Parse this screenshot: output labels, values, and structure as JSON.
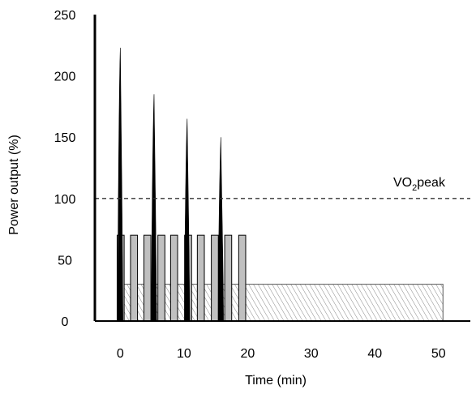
{
  "chart_data": {
    "type": "bar",
    "xlabel": "Time (min)",
    "ylabel": "Power output (%)",
    "xlim": [
      -4,
      55
    ],
    "ylim": [
      0,
      250
    ],
    "x_ticks": [
      0,
      10,
      20,
      30,
      40,
      50
    ],
    "y_ticks": [
      0,
      50,
      100,
      150,
      200,
      250
    ],
    "grid": false,
    "reference_line": {
      "value": 100,
      "label_main": "VO",
      "label_sub": "2",
      "label_tail": "peak",
      "style": "dashed"
    },
    "sprint_bars": {
      "value": 70,
      "color": "#c0c0c0",
      "intervals": [
        [
          -0.5,
          0.6
        ],
        [
          1.6,
          2.7
        ],
        [
          3.7,
          4.8
        ],
        [
          5.9,
          7.0
        ],
        [
          7.9,
          9.0
        ],
        [
          10.1,
          11.2
        ],
        [
          12.1,
          13.2
        ],
        [
          14.3,
          15.4
        ],
        [
          16.4,
          17.5
        ],
        [
          18.6,
          19.7
        ]
      ]
    },
    "background_block": {
      "start": 0.5,
      "end": 50.7,
      "value": 30,
      "pattern": "hatched"
    },
    "power_spikes": [
      {
        "time": 0,
        "peak": 223
      },
      {
        "time": 5.3,
        "peak": 185
      },
      {
        "time": 10.5,
        "peak": 165
      },
      {
        "time": 15.8,
        "peak": 150
      }
    ]
  }
}
